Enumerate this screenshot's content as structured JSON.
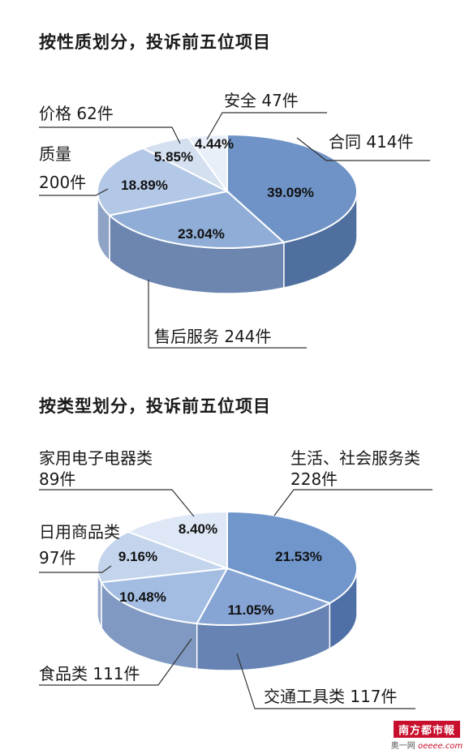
{
  "chart_data": [
    {
      "type": "pie",
      "title": "按性质划分，投诉前五位项目",
      "slices": [
        {
          "label": "合同",
          "count": "414件",
          "value": 39.09,
          "percent": "39.09%",
          "color": "#6f93c6",
          "side": "#4f6f9e"
        },
        {
          "label": "售后服务",
          "count": "244件",
          "value": 23.04,
          "percent": "23.04%",
          "color": "#8fadd6",
          "side": "#6c86b0"
        },
        {
          "label": "质量",
          "count": "200件",
          "value": 18.89,
          "percent": "18.89%",
          "color": "#b3c8e6",
          "side": "#8ea3c6"
        },
        {
          "label": "价格",
          "count": "62件",
          "value": 5.85,
          "percent": "5.85%",
          "color": "#d4e0f0",
          "side": "#aab8d0"
        },
        {
          "label": "安全",
          "count": "47件",
          "value": 4.44,
          "percent": "4.44%",
          "color": "#e9eff8",
          "side": "#bcc8dc"
        }
      ]
    },
    {
      "type": "pie",
      "title": "按类型划分，投诉前五位项目",
      "slices": [
        {
          "label": "生活、社会服务类",
          "count": "228件",
          "value": 21.53,
          "percent": "21.53%",
          "color": "#7096cc",
          "side": "#4f70a6"
        },
        {
          "label": "交通工具类",
          "count": "117件",
          "value": 11.05,
          "percent": "11.05%",
          "color": "#86a4d4",
          "side": "#6683b4"
        },
        {
          "label": "食品类",
          "count": "111件",
          "value": 10.48,
          "percent": "10.48%",
          "color": "#a3bde2",
          "side": "#8099c2"
        },
        {
          "label": "日用商品类",
          "count": "97件",
          "value": 9.16,
          "percent": "9.16%",
          "color": "#c3d4ec",
          "side": "#99aacb"
        },
        {
          "label": "家用电子电器类",
          "count": "89件",
          "value": 8.4,
          "percent": "8.40%",
          "color": "#dde7f5",
          "side": "#b2bfd6"
        }
      ]
    }
  ],
  "watermark": {
    "brand": "南方都市報",
    "site_prefix": "奥一网",
    "site_url": "oeeee.com"
  }
}
